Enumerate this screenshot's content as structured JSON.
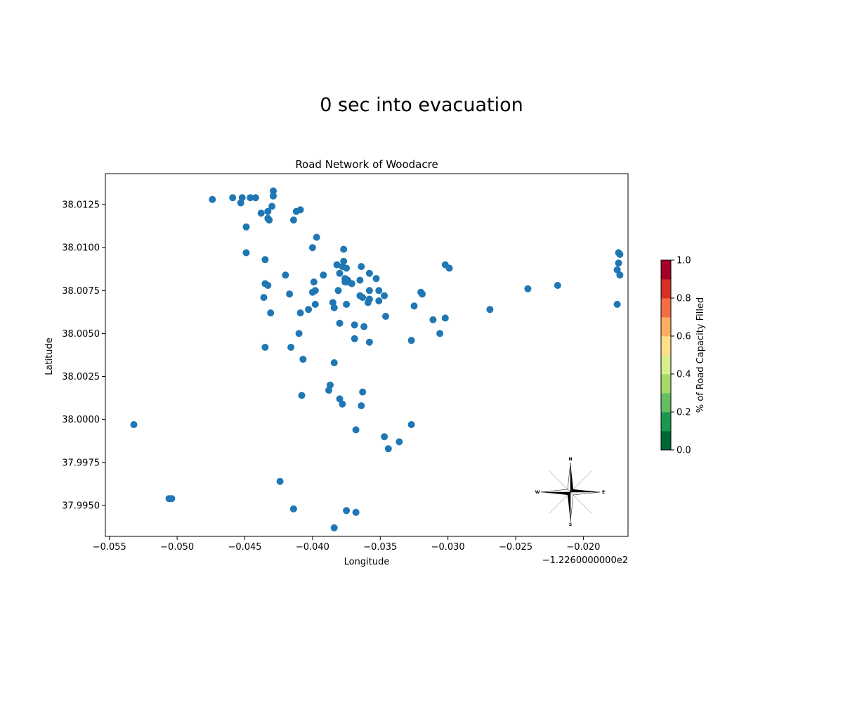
{
  "figure": {
    "suptitle": "0 sec into evacuation"
  },
  "chart_data": {
    "type": "scatter",
    "title": "Road Network of Woodacre",
    "xlabel": "Longitude",
    "ylabel": "Latitude",
    "x_offset_label": "−1.2260000000e2",
    "xlim": [
      -0.0553,
      -0.0167
    ],
    "ylim": [
      37.9932,
      38.0143
    ],
    "xticks": [
      -0.055,
      -0.05,
      -0.045,
      -0.04,
      -0.035,
      -0.03,
      -0.025,
      -0.02
    ],
    "xtick_labels": [
      "−0.055",
      "−0.050",
      "−0.045",
      "−0.040",
      "−0.035",
      "−0.030",
      "−0.025",
      "−0.020"
    ],
    "yticks": [
      37.995,
      37.9975,
      38.0,
      38.0025,
      38.005,
      38.0075,
      38.01,
      38.0125
    ],
    "ytick_labels": [
      "37.9950",
      "37.9975",
      "38.0000",
      "38.0025",
      "38.0050",
      "38.0075",
      "38.0100",
      "38.0125"
    ],
    "grid": false,
    "point_color": "#1f77b4",
    "points": [
      [
        -0.0474,
        38.0128
      ],
      [
        -0.0459,
        38.0129
      ],
      [
        -0.0452,
        38.0129
      ],
      [
        -0.0453,
        38.0126
      ],
      [
        -0.0446,
        38.0129
      ],
      [
        -0.0442,
        38.0129
      ],
      [
        -0.0429,
        38.0133
      ],
      [
        -0.0429,
        38.013
      ],
      [
        -0.043,
        38.0124
      ],
      [
        -0.0433,
        38.0121
      ],
      [
        -0.0438,
        38.012
      ],
      [
        -0.0433,
        38.0117
      ],
      [
        -0.0432,
        38.0116
      ],
      [
        -0.0449,
        38.0112
      ],
      [
        -0.0412,
        38.0121
      ],
      [
        -0.0409,
        38.0122
      ],
      [
        -0.0414,
        38.0116
      ],
      [
        -0.0397,
        38.0106
      ],
      [
        -0.04,
        38.01
      ],
      [
        -0.0377,
        38.0099
      ],
      [
        -0.0449,
        38.0097
      ],
      [
        -0.0435,
        38.0093
      ],
      [
        -0.0377,
        38.0092
      ],
      [
        -0.0382,
        38.009
      ],
      [
        -0.0378,
        38.0089
      ],
      [
        -0.0375,
        38.0088
      ],
      [
        -0.0364,
        38.0089
      ],
      [
        -0.0358,
        38.0085
      ],
      [
        -0.038,
        38.0085
      ],
      [
        -0.0392,
        38.0084
      ],
      [
        -0.042,
        38.0084
      ],
      [
        -0.0376,
        38.0082
      ],
      [
        -0.0374,
        38.0081
      ],
      [
        -0.0376,
        38.008
      ],
      [
        -0.0374,
        38.008
      ],
      [
        -0.0371,
        38.0079
      ],
      [
        -0.0365,
        38.0081
      ],
      [
        -0.0353,
        38.0082
      ],
      [
        -0.0399,
        38.008
      ],
      [
        -0.0435,
        38.0079
      ],
      [
        -0.0433,
        38.0078
      ],
      [
        -0.0398,
        38.0075
      ],
      [
        -0.04,
        38.0074
      ],
      [
        -0.0417,
        38.0073
      ],
      [
        -0.0436,
        38.0071
      ],
      [
        -0.0381,
        38.0075
      ],
      [
        -0.0365,
        38.0072
      ],
      [
        -0.0363,
        38.0071
      ],
      [
        -0.0358,
        38.0075
      ],
      [
        -0.0351,
        38.0075
      ],
      [
        -0.0347,
        38.0072
      ],
      [
        -0.0358,
        38.007
      ],
      [
        -0.0359,
        38.0068
      ],
      [
        -0.0351,
        38.0069
      ],
      [
        -0.0385,
        38.0068
      ],
      [
        -0.0384,
        38.0065
      ],
      [
        -0.0375,
        38.0067
      ],
      [
        -0.0398,
        38.0067
      ],
      [
        -0.0403,
        38.0064
      ],
      [
        -0.0409,
        38.0062
      ],
      [
        -0.0431,
        38.0062
      ],
      [
        -0.032,
        38.0074
      ],
      [
        -0.0319,
        38.0073
      ],
      [
        -0.0325,
        38.0066
      ],
      [
        -0.0346,
        38.006
      ],
      [
        -0.0311,
        38.0058
      ],
      [
        -0.0302,
        38.0059
      ],
      [
        -0.0302,
        38.009
      ],
      [
        -0.0299,
        38.0088
      ],
      [
        -0.0269,
        38.0064
      ],
      [
        -0.0241,
        38.0076
      ],
      [
        -0.0219,
        38.0078
      ],
      [
        -0.038,
        38.0056
      ],
      [
        -0.0369,
        38.0055
      ],
      [
        -0.0362,
        38.0054
      ],
      [
        -0.041,
        38.005
      ],
      [
        -0.0306,
        38.005
      ],
      [
        -0.0369,
        38.0047
      ],
      [
        -0.0358,
        38.0045
      ],
      [
        -0.0327,
        38.0046
      ],
      [
        -0.0435,
        38.0042
      ],
      [
        -0.0416,
        38.0042
      ],
      [
        -0.0407,
        38.0035
      ],
      [
        -0.0384,
        38.0033
      ],
      [
        -0.0387,
        38.002
      ],
      [
        -0.0388,
        38.0017
      ],
      [
        -0.0363,
        38.0016
      ],
      [
        -0.0408,
        38.0014
      ],
      [
        -0.038,
        38.0012
      ],
      [
        -0.0378,
        38.0009
      ],
      [
        -0.0364,
        38.0008
      ],
      [
        -0.0532,
        37.9997
      ],
      [
        -0.0327,
        37.9997
      ],
      [
        -0.0368,
        37.9994
      ],
      [
        -0.0347,
        37.999
      ],
      [
        -0.0336,
        37.9987
      ],
      [
        -0.0344,
        37.9983
      ],
      [
        -0.0424,
        37.9964
      ],
      [
        -0.0506,
        37.9954
      ],
      [
        -0.0504,
        37.9954
      ],
      [
        -0.0414,
        37.9948
      ],
      [
        -0.0375,
        37.9947
      ],
      [
        -0.0368,
        37.9946
      ],
      [
        -0.0384,
        37.9937
      ],
      [
        -0.0174,
        38.0097
      ],
      [
        -0.0173,
        38.0096
      ],
      [
        -0.0174,
        38.0091
      ],
      [
        -0.0175,
        38.0087
      ],
      [
        -0.0173,
        38.0084
      ],
      [
        -0.0175,
        38.0067
      ]
    ],
    "colorbar": {
      "label": "% of Road Capacity Filled",
      "range": [
        0.0,
        1.0
      ],
      "ticks": [
        0.0,
        0.2,
        0.4,
        0.6,
        0.8,
        1.0
      ],
      "tick_labels": [
        "0.0",
        "0.2",
        "0.4",
        "0.6",
        "0.8",
        "1.0"
      ],
      "colors": [
        "#006837",
        "#1a9850",
        "#66bd63",
        "#a6d96a",
        "#d9ef8b",
        "#fee08b",
        "#fdae61",
        "#f46d43",
        "#d73027",
        "#a50026"
      ]
    },
    "compass": {
      "labels": {
        "north": "N",
        "south": "S",
        "east": "E",
        "west": "W"
      }
    }
  }
}
